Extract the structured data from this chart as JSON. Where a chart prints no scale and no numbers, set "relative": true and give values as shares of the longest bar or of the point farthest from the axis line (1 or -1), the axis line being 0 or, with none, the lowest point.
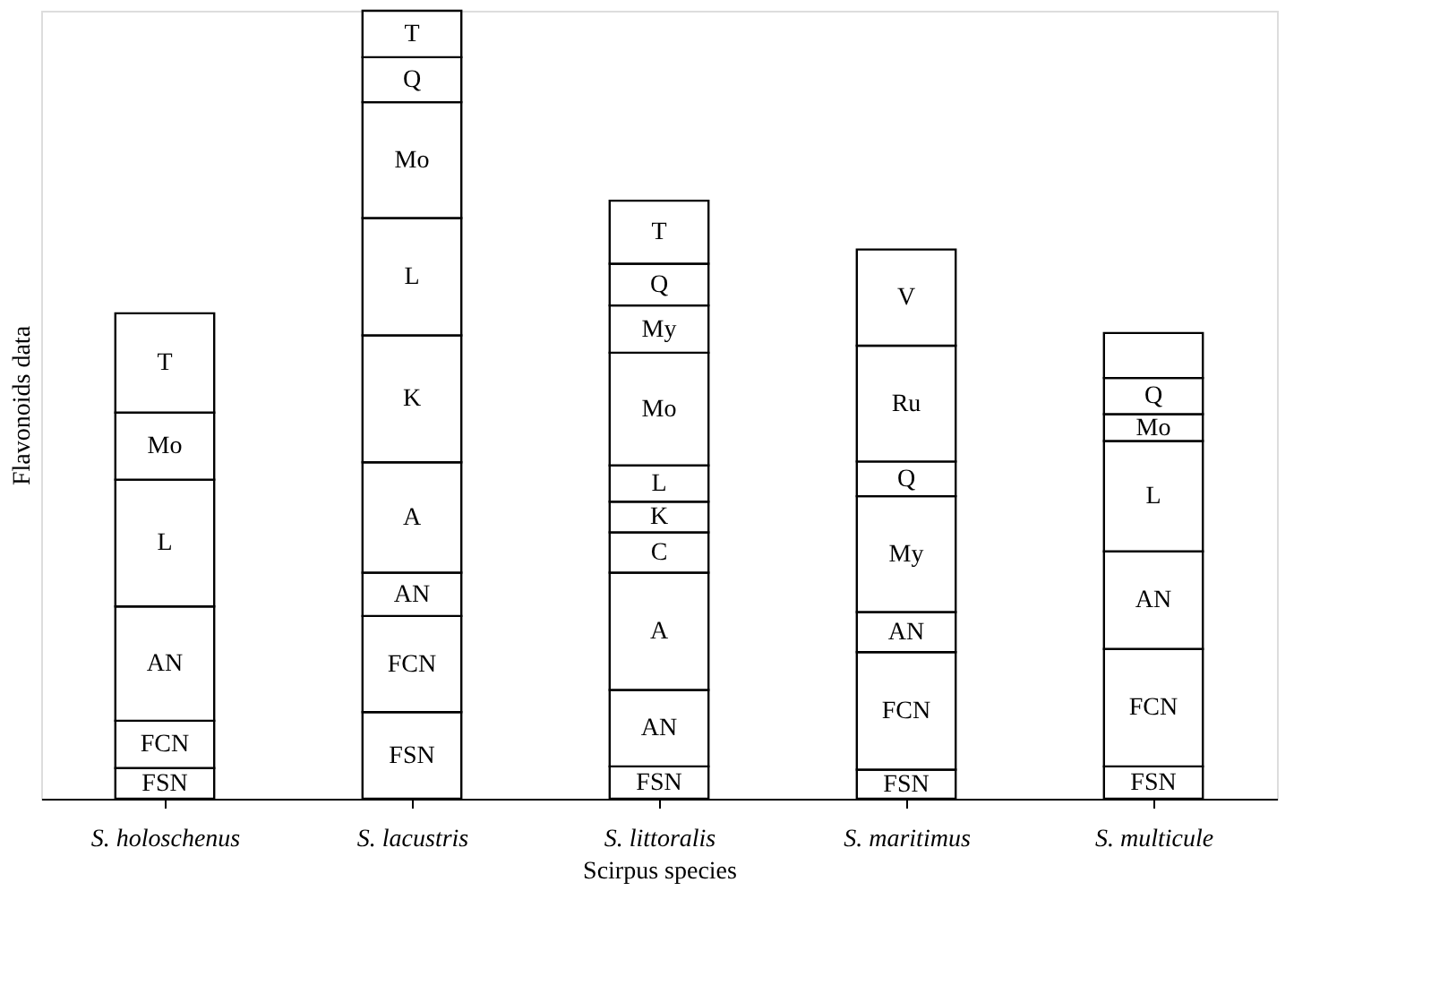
{
  "chart_data": {
    "type": "bar",
    "stacked": true,
    "relative": true,
    "xlabel": "Scirpus species",
    "ylabel": "Flavonoids data",
    "categories": [
      "S. holoschenus",
      "S. lacustris",
      "S. littoralis",
      "S. maritimus",
      "S. multicule"
    ],
    "series": [
      {
        "name": "FSN",
        "color": "#ffffff",
        "values": [
          0.039,
          0.11,
          0.041,
          0.037,
          0.041
        ]
      },
      {
        "name": "FCN",
        "color": "#ffffff",
        "values": [
          0.06,
          0.122,
          null,
          0.149,
          0.149
        ]
      },
      {
        "name": "AN",
        "color": "#ffffff",
        "values": [
          0.145,
          0.055,
          0.097,
          0.051,
          0.124
        ]
      },
      {
        "name": "A",
        "color": "#ffffff",
        "values": [
          null,
          0.14,
          0.149,
          null,
          null
        ]
      },
      {
        "name": "C",
        "color": "#ffffff",
        "values": [
          null,
          null,
          0.051,
          null,
          null
        ]
      },
      {
        "name": "K",
        "color": "#ffffff",
        "values": [
          null,
          0.161,
          0.039,
          null,
          null
        ]
      },
      {
        "name": "L",
        "color": "#ffffff",
        "values": [
          0.161,
          0.149,
          0.046,
          null,
          0.14
        ]
      },
      {
        "name": "Mo",
        "color": "#ffffff",
        "values": [
          0.085,
          0.147,
          0.143,
          null,
          0.034
        ]
      },
      {
        "name": "My",
        "color": "#ffffff",
        "values": [
          null,
          null,
          0.06,
          0.147,
          null
        ]
      },
      {
        "name": "Q",
        "color": "#ffffff",
        "values": [
          null,
          0.057,
          0.053,
          0.044,
          0.046
        ]
      },
      {
        "name": "Ru",
        "color": "#ffffff",
        "values": [
          null,
          null,
          null,
          0.147,
          null
        ]
      },
      {
        "name": "V",
        "color": "#ffffff",
        "values": [
          null,
          null,
          null,
          0.122,
          null
        ]
      },
      {
        "name": "T",
        "color": "#ffffff",
        "values": [
          0.126,
          0.059,
          0.08,
          null,
          null
        ]
      },
      {
        "color": "#ffffff",
        "values": [
          null,
          null,
          null,
          null,
          0.057
        ]
      }
    ]
  }
}
